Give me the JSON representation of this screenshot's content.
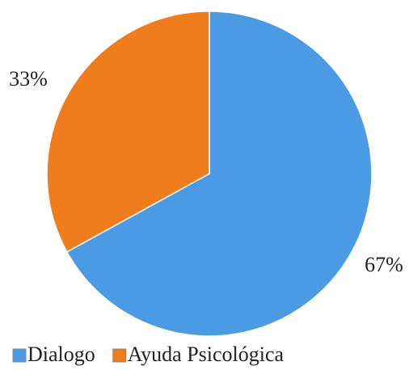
{
  "chart_data": {
    "type": "pie",
    "categories": [
      "Dialogo",
      "Ayuda Psicológica"
    ],
    "values": [
      67,
      33
    ],
    "value_labels": [
      "67%",
      "33%"
    ],
    "colors": [
      "#4a9be3",
      "#f07d1c"
    ],
    "start_angle": 0,
    "direction": "clockwise",
    "legend": "bottom"
  }
}
